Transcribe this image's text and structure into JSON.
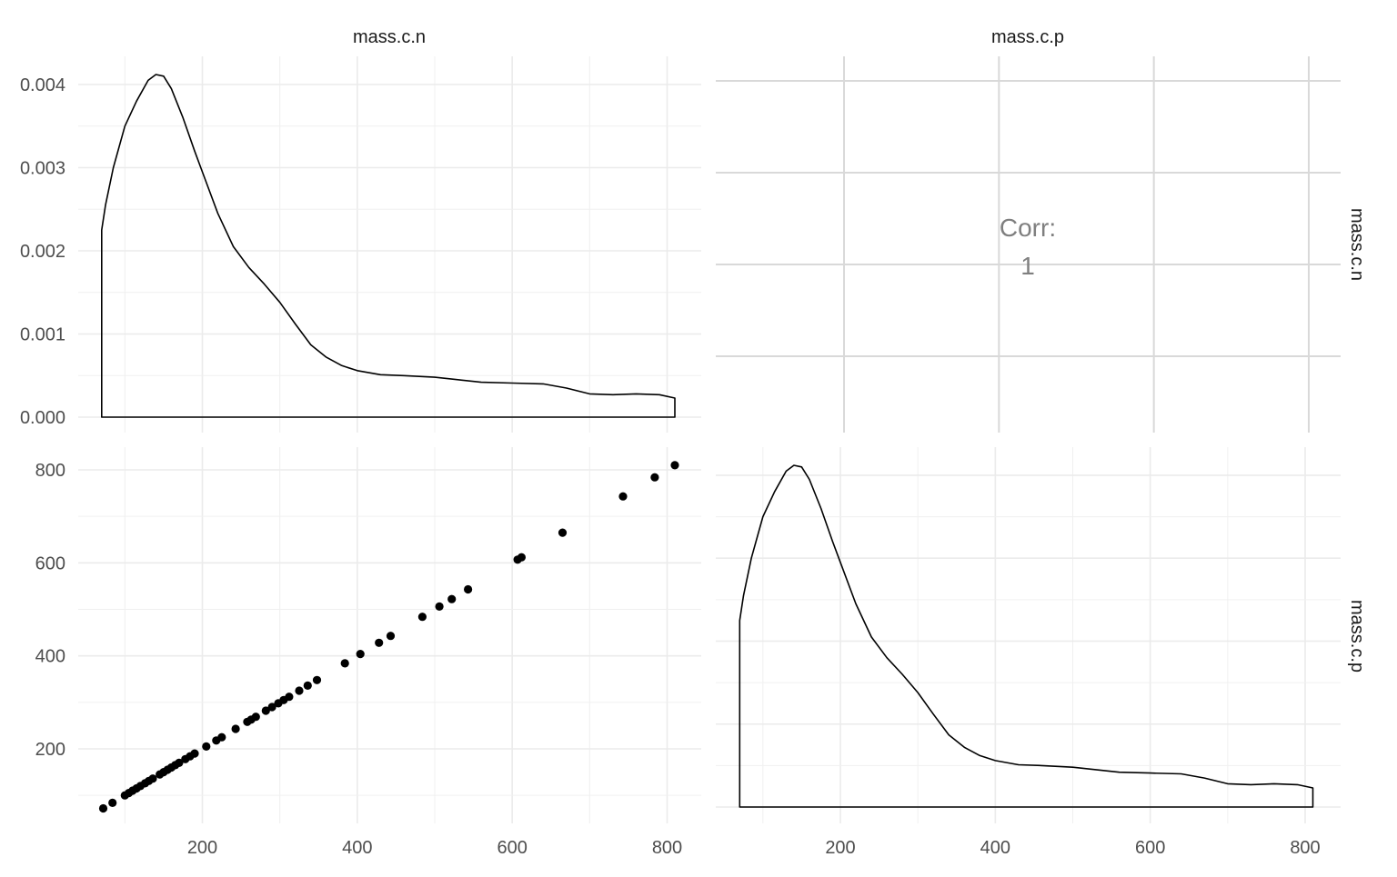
{
  "strips": {
    "col1": "mass.c.n",
    "col2": "mass.c.p",
    "row1": "mass.c.n",
    "row2": "mass.c.p"
  },
  "corr": {
    "label": "Corr:",
    "value": "1"
  },
  "chart_data": [
    {
      "type": "area",
      "panel": "mass.c.n / mass.c.n",
      "description_free": true,
      "xlim": [
        70,
        810
      ],
      "ylim": [
        0,
        0.0041
      ],
      "y_ticks": [
        "0.000",
        "0.001",
        "0.002",
        "0.003",
        "0.004"
      ],
      "x": [
        70,
        75,
        85,
        100,
        115,
        130,
        140,
        150,
        160,
        175,
        190,
        200,
        220,
        240,
        260,
        280,
        300,
        320,
        340,
        360,
        380,
        400,
        430,
        460,
        500,
        530,
        560,
        600,
        640,
        670,
        700,
        730,
        760,
        790,
        810
      ],
      "y": [
        0.00225,
        0.00255,
        0.003,
        0.0035,
        0.0038,
        0.00405,
        0.00412,
        0.0041,
        0.00395,
        0.0036,
        0.0032,
        0.00295,
        0.00245,
        0.00205,
        0.0018,
        0.0016,
        0.00138,
        0.00112,
        0.00087,
        0.00072,
        0.00062,
        0.00056,
        0.00051,
        0.0005,
        0.00048,
        0.00045,
        0.00042,
        0.00041,
        0.0004,
        0.00035,
        0.00028,
        0.00027,
        0.00028,
        0.00027,
        0.00023
      ]
    },
    {
      "type": "scatter",
      "panel": "mass.c.n (x) vs mass.c.p (y)",
      "xlim": [
        70,
        810
      ],
      "ylim": [
        70,
        810
      ],
      "x_ticks": [
        "200",
        "400",
        "600",
        "800"
      ],
      "y_ticks": [
        "200",
        "400",
        "600",
        "800"
      ],
      "points": [
        [
          72,
          72
        ],
        [
          84,
          84
        ],
        [
          100,
          100
        ],
        [
          105,
          105
        ],
        [
          110,
          110
        ],
        [
          115,
          115
        ],
        [
          120,
          120
        ],
        [
          126,
          126
        ],
        [
          131,
          131
        ],
        [
          136,
          136
        ],
        [
          145,
          145
        ],
        [
          150,
          150
        ],
        [
          155,
          155
        ],
        [
          160,
          160
        ],
        [
          165,
          165
        ],
        [
          170,
          170
        ],
        [
          178,
          178
        ],
        [
          184,
          184
        ],
        [
          190,
          190
        ],
        [
          205,
          205
        ],
        [
          218,
          218
        ],
        [
          225,
          225
        ],
        [
          243,
          243
        ],
        [
          258,
          258
        ],
        [
          263,
          263
        ],
        [
          269,
          269
        ],
        [
          282,
          282
        ],
        [
          290,
          290
        ],
        [
          298,
          298
        ],
        [
          305,
          305
        ],
        [
          312,
          312
        ],
        [
          325,
          325
        ],
        [
          336,
          336
        ],
        [
          348,
          348
        ],
        [
          384,
          384
        ],
        [
          404,
          404
        ],
        [
          428,
          428
        ],
        [
          443,
          443
        ],
        [
          484,
          484
        ],
        [
          506,
          506
        ],
        [
          522,
          522
        ],
        [
          543,
          543
        ],
        [
          607,
          607
        ],
        [
          612,
          612
        ],
        [
          665,
          665
        ],
        [
          743,
          743
        ],
        [
          784,
          784
        ],
        [
          810,
          810
        ]
      ]
    },
    {
      "type": "area",
      "panel": "mass.c.p / mass.c.p",
      "xlim": [
        70,
        810
      ],
      "ylim": [
        0,
        0.0041
      ],
      "x": [
        70,
        75,
        85,
        100,
        115,
        130,
        140,
        150,
        160,
        175,
        190,
        200,
        220,
        240,
        260,
        280,
        300,
        320,
        340,
        360,
        380,
        400,
        430,
        460,
        500,
        530,
        560,
        600,
        640,
        670,
        700,
        730,
        760,
        790,
        810
      ],
      "y": [
        0.00225,
        0.00255,
        0.003,
        0.0035,
        0.0038,
        0.00405,
        0.00412,
        0.0041,
        0.00395,
        0.0036,
        0.0032,
        0.00295,
        0.00245,
        0.00205,
        0.0018,
        0.0016,
        0.00138,
        0.00112,
        0.00087,
        0.00072,
        0.00062,
        0.00056,
        0.00051,
        0.0005,
        0.00048,
        0.00045,
        0.00042,
        0.00041,
        0.0004,
        0.00035,
        0.00028,
        0.00027,
        0.00028,
        0.00027,
        0.00023
      ]
    }
  ]
}
